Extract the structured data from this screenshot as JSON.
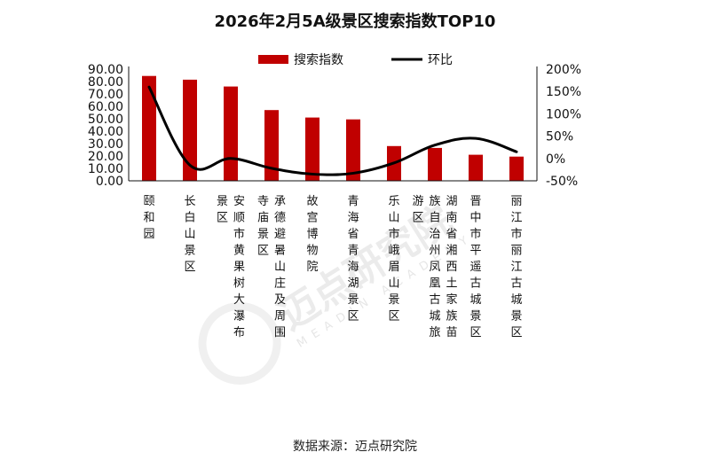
{
  "chart_data": {
    "type": "bar",
    "title": "2026年2月5A级景区搜索指数TOP10",
    "categories": [
      "颐和园",
      "长白山景区",
      "安顺市黄果树大瀑布景区",
      "承德避暑山庄及周围寺庙景区",
      "故宫博物院",
      "青海省青海湖景区",
      "乐山市峨眉山景区",
      "湖南省湘西土家族苗族自治州凤凰古城旅游区",
      "晋中市平遥古城景区",
      "丽江市丽江古城景区"
    ],
    "series": [
      {
        "name": "搜索指数",
        "type": "bar",
        "axis": "left",
        "color": "#c00000",
        "values": [
          84.5,
          81.5,
          76,
          57,
          51,
          49.5,
          28,
          26.5,
          21,
          19.5
        ]
      },
      {
        "name": "环比",
        "type": "line",
        "axis": "right",
        "color": "#000000",
        "values": [
          160,
          -15,
          0,
          -22,
          -35,
          -33,
          -10,
          30,
          45,
          15
        ]
      }
    ],
    "y_left": {
      "min": 0,
      "max": 90,
      "ticks": [
        0,
        10,
        20,
        30,
        40,
        50,
        60,
        70,
        80,
        90
      ],
      "tick_labels": [
        "0.00",
        "10.00",
        "20.00",
        "30.00",
        "40.00",
        "50.00",
        "60.00",
        "70.00",
        "80.00",
        "90.00"
      ]
    },
    "y_right": {
      "min": -50,
      "max": 200,
      "ticks": [
        -50,
        0,
        50,
        100,
        150,
        200
      ],
      "tick_labels": [
        "-50%",
        "0%",
        "50%",
        "100%",
        "150%",
        "200%"
      ]
    },
    "legend": {
      "position": "top",
      "items": [
        {
          "label": "搜索指数",
          "kind": "bar",
          "color": "#c00000"
        },
        {
          "label": "环比",
          "kind": "line",
          "color": "#000000"
        }
      ]
    },
    "grid": false
  },
  "watermark": {
    "text": "迈点研究院",
    "subtext": "MEADIN ACADEMY"
  },
  "source": "数据来源：迈点研究院"
}
